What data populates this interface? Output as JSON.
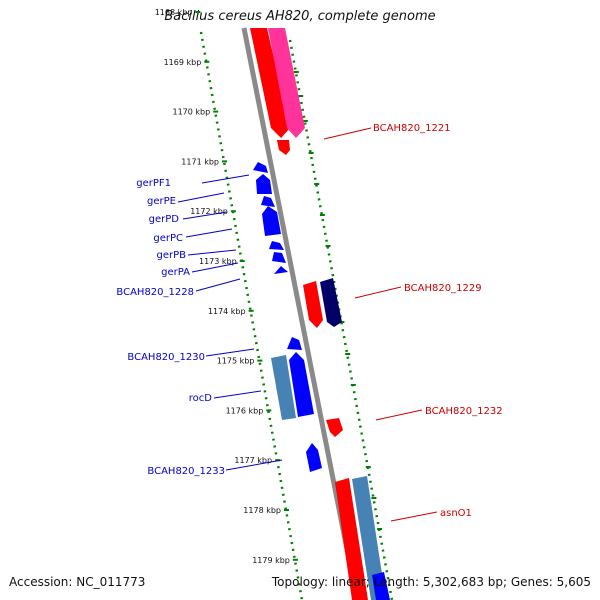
{
  "title": "Bacillus cereus AH820, complete genome",
  "footer": {
    "accession": "Accession: NC_011773",
    "summary": "Topology: linear; Length: 5,302,683 bp; Genes: 5,605"
  },
  "ticks": [
    "1168 kbp",
    "1169 kbp",
    "1170 kbp",
    "1171 kbp",
    "1172 kbp",
    "1173 kbp",
    "1174 kbp",
    "1175 kbp",
    "1176 kbp",
    "1177 kbp",
    "1178 kbp",
    "1179 kbp"
  ],
  "labels": {
    "left": [
      "gerPF1",
      "gerPE",
      "gerPD",
      "gerPC",
      "gerPB",
      "gerPA",
      "BCAH820_1228",
      "BCAH820_1230",
      "rocD",
      "BCAH820_1233"
    ],
    "right": [
      "BCAH820_1221",
      "BCAH820_1229",
      "BCAH820_1232",
      "asnO1"
    ]
  },
  "colors": {
    "forward_red": "#ff0000",
    "pink": "#ff3399",
    "reverse_blue": "#0000ff",
    "navy": "#000066",
    "steel": "#4682b4",
    "axis_gray": "#8a8a8a",
    "tick_green": "#008000",
    "label_left": "#0000cc",
    "label_right": "#cc0000"
  }
}
